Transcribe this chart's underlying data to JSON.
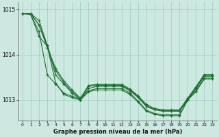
{
  "background_color": "#cce8e0",
  "grid_color": "#99ccbb",
  "line_color": "#1a6e2e",
  "xlabel": "Graphe pression niveau de la mer (hPa)",
  "xlim": [
    -0.5,
    23.5
  ],
  "ylim": [
    1012.55,
    1015.15
  ],
  "yticks": [
    1013,
    1014,
    1015
  ],
  "xticks": [
    0,
    1,
    2,
    3,
    4,
    5,
    6,
    7,
    8,
    9,
    10,
    11,
    12,
    13,
    14,
    15,
    16,
    17,
    18,
    19,
    20,
    21,
    22,
    23
  ],
  "series": [
    [
      1014.9,
      1014.9,
      1014.75,
      1014.2,
      1013.55,
      1013.35,
      1013.15,
      1013.0,
      1013.25,
      1013.3,
      1013.3,
      1013.3,
      1013.3,
      1013.2,
      1013.05,
      1012.85,
      1012.78,
      1012.75,
      1012.75,
      1012.75,
      1013.0,
      1013.25,
      1013.52,
      1013.52
    ],
    [
      1014.9,
      1014.9,
      1014.65,
      1014.2,
      1013.65,
      1013.38,
      1013.18,
      1013.02,
      1013.3,
      1013.32,
      1013.32,
      1013.32,
      1013.32,
      1013.22,
      1013.07,
      1012.87,
      1012.79,
      1012.76,
      1012.76,
      1012.76,
      1013.02,
      1013.27,
      1013.54,
      1013.54
    ],
    [
      1014.9,
      1014.9,
      1014.65,
      1014.15,
      1013.7,
      1013.42,
      1013.22,
      1013.04,
      1013.32,
      1013.34,
      1013.34,
      1013.34,
      1013.34,
      1013.24,
      1013.09,
      1012.9,
      1012.81,
      1012.78,
      1012.78,
      1012.78,
      1013.04,
      1013.29,
      1013.56,
      1013.56
    ],
    [
      1014.9,
      1014.88,
      1014.5,
      1013.55,
      1013.35,
      1013.15,
      1013.08,
      1013.0,
      1013.2,
      1013.25,
      1013.25,
      1013.25,
      1013.25,
      1013.15,
      1012.97,
      1012.77,
      1012.7,
      1012.67,
      1012.67,
      1012.67,
      1013.0,
      1013.2,
      1013.48,
      1013.48
    ],
    [
      1014.9,
      1014.88,
      1014.4,
      1014.18,
      1013.38,
      1013.12,
      1013.05,
      1013.0,
      1013.18,
      1013.22,
      1013.22,
      1013.22,
      1013.22,
      1013.12,
      1012.95,
      1012.75,
      1012.68,
      1012.65,
      1012.65,
      1012.65,
      1013.0,
      1013.18,
      1013.46,
      1013.46
    ]
  ]
}
